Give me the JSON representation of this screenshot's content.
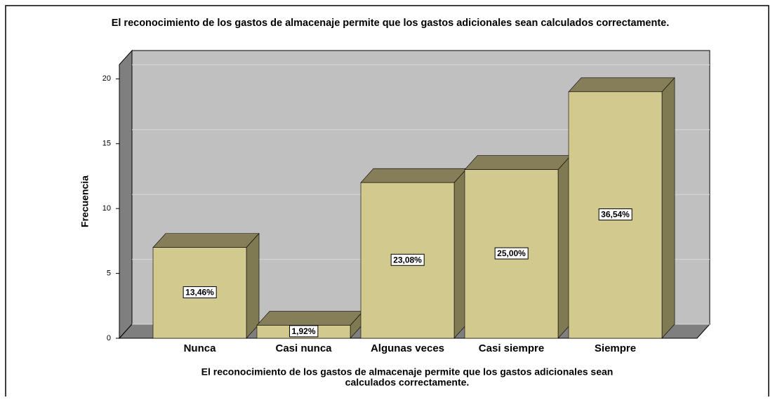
{
  "chart_data": {
    "type": "bar3d",
    "title": "El reconocimiento de los gastos de almacenaje permite que los gastos adicionales sean calculados correctamente.",
    "categories": [
      "Nunca",
      "Casi nunca",
      "Algunas veces",
      "Casi siempre",
      "Siempre"
    ],
    "values": [
      7,
      1,
      12,
      13,
      19
    ],
    "percentages": {
      "values": [
        13.46,
        1.92,
        23.08,
        25,
        36.54
      ],
      "value_labels": [
        "13,46%",
        "1,92%",
        "23,08%",
        "25,00%",
        "36,54%"
      ]
    },
    "color": "#d2c98f",
    "y_label": "Frecuencia",
    "x_label": [
      "El reconocimiento de los gastos de almacenaje permite que los gastos adicionales sean",
      "calculados correctamente."
    ],
    "ylim": [
      0,
      21.1
    ],
    "yticks": [
      0,
      5,
      10,
      15,
      20
    ],
    "grid": true
  }
}
